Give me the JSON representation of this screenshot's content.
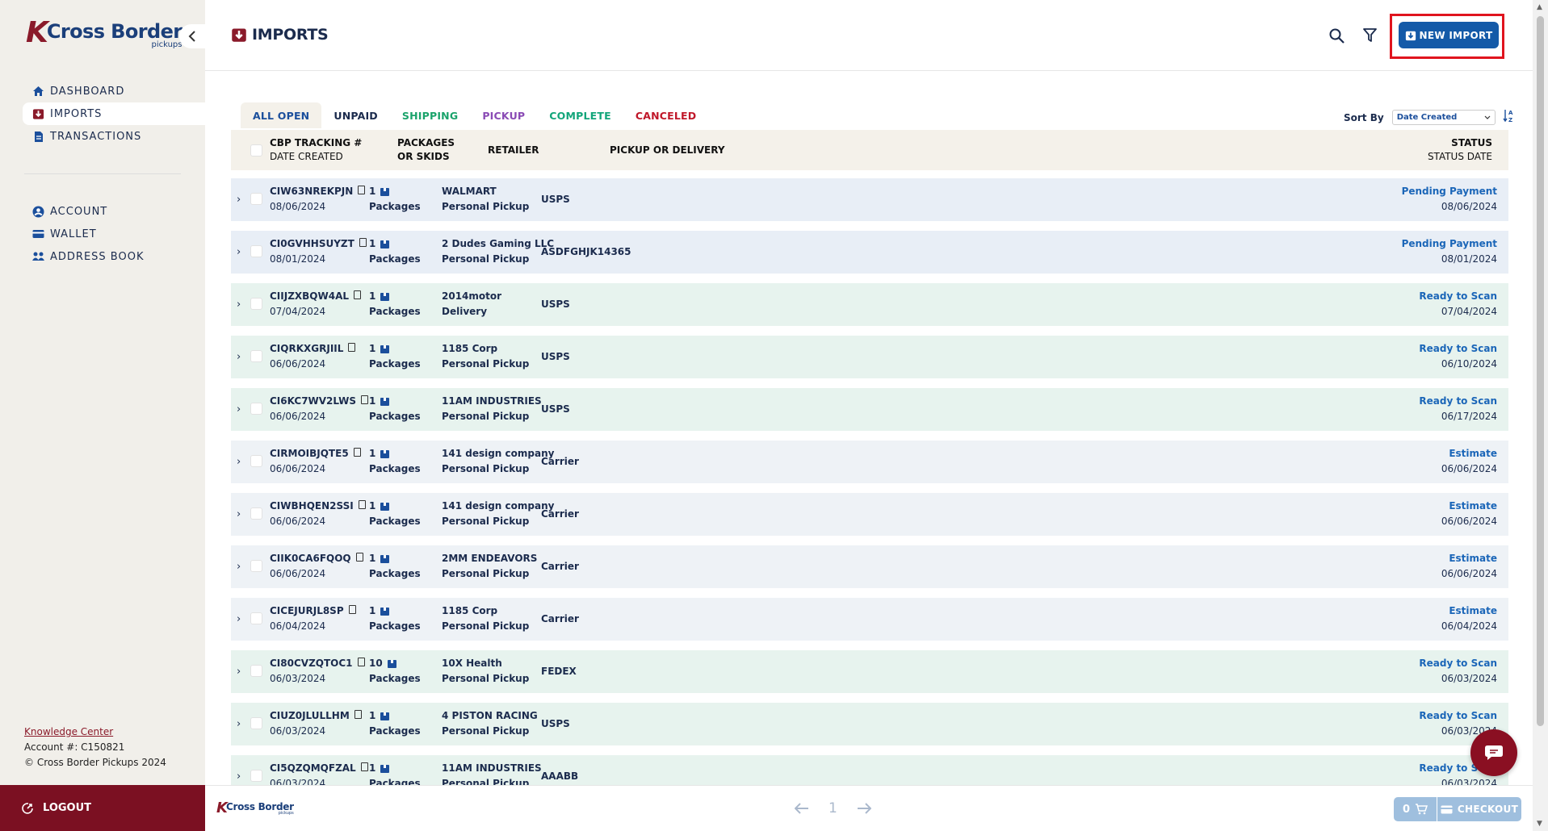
{
  "brand": {
    "name": "Cross Border",
    "sub": "pickups"
  },
  "sidebar": {
    "collapse_icon": "chevron-left-icon",
    "primary": [
      {
        "label": "DASHBOARD",
        "icon": "home-icon"
      },
      {
        "label": "IMPORTS",
        "icon": "imports-icon",
        "active": true
      },
      {
        "label": "TRANSACTIONS",
        "icon": "document-icon"
      }
    ],
    "secondary": [
      {
        "label": "ACCOUNT",
        "icon": "user-icon"
      },
      {
        "label": "WALLET",
        "icon": "wallet-icon"
      },
      {
        "label": "ADDRESS BOOK",
        "icon": "address-book-icon"
      }
    ],
    "knowledge_center": "Knowledge Center",
    "account": "Account #: C150821",
    "copyright": "© Cross Border Pickups 2024",
    "logout": "LOGOUT"
  },
  "header": {
    "title": "IMPORTS",
    "new_import": "NEW IMPORT"
  },
  "tabs": [
    {
      "label": "ALL OPEN",
      "color": "#1b4f9c"
    },
    {
      "label": "UNPAID",
      "color": "#1b2b4d"
    },
    {
      "label": "SHIPPING",
      "color": "#1aa36b"
    },
    {
      "label": "PICKUP",
      "color": "#8a4bb5"
    },
    {
      "label": "COMPLETE",
      "color": "#12a57a"
    },
    {
      "label": "CANCELED",
      "color": "#c0182a"
    }
  ],
  "sort": {
    "label": "Sort By",
    "value": "Date Created"
  },
  "table": {
    "headers": {
      "tracking": "CBP TRACKING #",
      "date_created": "DATE CREATED",
      "packages": "PACKAGES",
      "skids": "OR SKIDS",
      "retailer": "RETAILER",
      "pickup": "PICKUP OR DELIVERY",
      "status": "STATUS",
      "status_date": "STATUS DATE"
    },
    "rows": [
      {
        "tracking": "CIW63NREKPJN",
        "date": "08/06/2024",
        "count": "1",
        "unit": "Packages",
        "retailer": "WALMART",
        "method": "Personal Pickup",
        "pickup": "USPS",
        "status": "Pending Payment",
        "status_date": "08/06/2024",
        "tone": "blue"
      },
      {
        "tracking": "CI0GVHHSUYZT",
        "date": "08/01/2024",
        "count": "1",
        "unit": "Packages",
        "retailer": "2 Dudes Gaming LLC",
        "method": "Personal Pickup",
        "pickup": "ASDFGHJK14365",
        "status": "Pending Payment",
        "status_date": "08/01/2024",
        "tone": "blue"
      },
      {
        "tracking": "CIIJZXBQW4AL",
        "date": "07/04/2024",
        "count": "1",
        "unit": "Packages",
        "retailer": "2014motor",
        "method": "Delivery",
        "pickup": "USPS",
        "status": "Ready to Scan",
        "status_date": "07/04/2024",
        "tone": "green"
      },
      {
        "tracking": "CIQRKXGRJIIL",
        "date": "06/06/2024",
        "count": "1",
        "unit": "Packages",
        "retailer": "1185 Corp",
        "method": "Personal Pickup",
        "pickup": "USPS",
        "status": "Ready to Scan",
        "status_date": "06/10/2024",
        "tone": "green"
      },
      {
        "tracking": "CI6KC7WV2LWS",
        "date": "06/06/2024",
        "count": "1",
        "unit": "Packages",
        "retailer": "11AM INDUSTRIES",
        "method": "Personal Pickup",
        "pickup": "USPS",
        "status": "Ready to Scan",
        "status_date": "06/17/2024",
        "tone": "green"
      },
      {
        "tracking": "CIRMOIBJQTE5",
        "date": "06/06/2024",
        "count": "1",
        "unit": "Packages",
        "retailer": "141 design company",
        "method": "Personal Pickup",
        "pickup": "Carrier",
        "status": "Estimate",
        "status_date": "06/06/2024",
        "tone": "gray"
      },
      {
        "tracking": "CIWBHQEN2SSI",
        "date": "06/06/2024",
        "count": "1",
        "unit": "Packages",
        "retailer": "141 design company",
        "method": "Personal Pickup",
        "pickup": "Carrier",
        "status": "Estimate",
        "status_date": "06/06/2024",
        "tone": "gray"
      },
      {
        "tracking": "CIIK0CA6FQOQ",
        "date": "06/06/2024",
        "count": "1",
        "unit": "Packages",
        "retailer": "2MM ENDEAVORS",
        "method": "Personal Pickup",
        "pickup": "Carrier",
        "status": "Estimate",
        "status_date": "06/06/2024",
        "tone": "gray"
      },
      {
        "tracking": "CICEJURJL8SP",
        "date": "06/04/2024",
        "count": "1",
        "unit": "Packages",
        "retailer": "1185 Corp",
        "method": "Personal Pickup",
        "pickup": "Carrier",
        "status": "Estimate",
        "status_date": "06/04/2024",
        "tone": "gray"
      },
      {
        "tracking": "CI80CVZQTOC1",
        "date": "06/03/2024",
        "count": "10",
        "unit": "Packages",
        "retailer": "10X Health",
        "method": "Personal Pickup",
        "pickup": "FEDEX",
        "status": "Ready to Scan",
        "status_date": "06/03/2024",
        "tone": "green"
      },
      {
        "tracking": "CIUZ0JLULLHM",
        "date": "06/03/2024",
        "count": "1",
        "unit": "Packages",
        "retailer": "4 PISTON RACING",
        "method": "Personal Pickup",
        "pickup": "USPS",
        "status": "Ready to Scan",
        "status_date": "06/03/2024",
        "tone": "green"
      },
      {
        "tracking": "CI5QZQMQFZAL",
        "date": "06/03/2024",
        "count": "1",
        "unit": "Packages",
        "retailer": "11AM INDUSTRIES",
        "method": "Personal Pickup",
        "pickup": "AAABB",
        "status": "Ready to Scan",
        "status_date": "06/03/2024",
        "tone": "green"
      }
    ]
  },
  "pager": {
    "page": "1"
  },
  "cart": {
    "count": "0",
    "checkout": "CHECKOUT"
  }
}
